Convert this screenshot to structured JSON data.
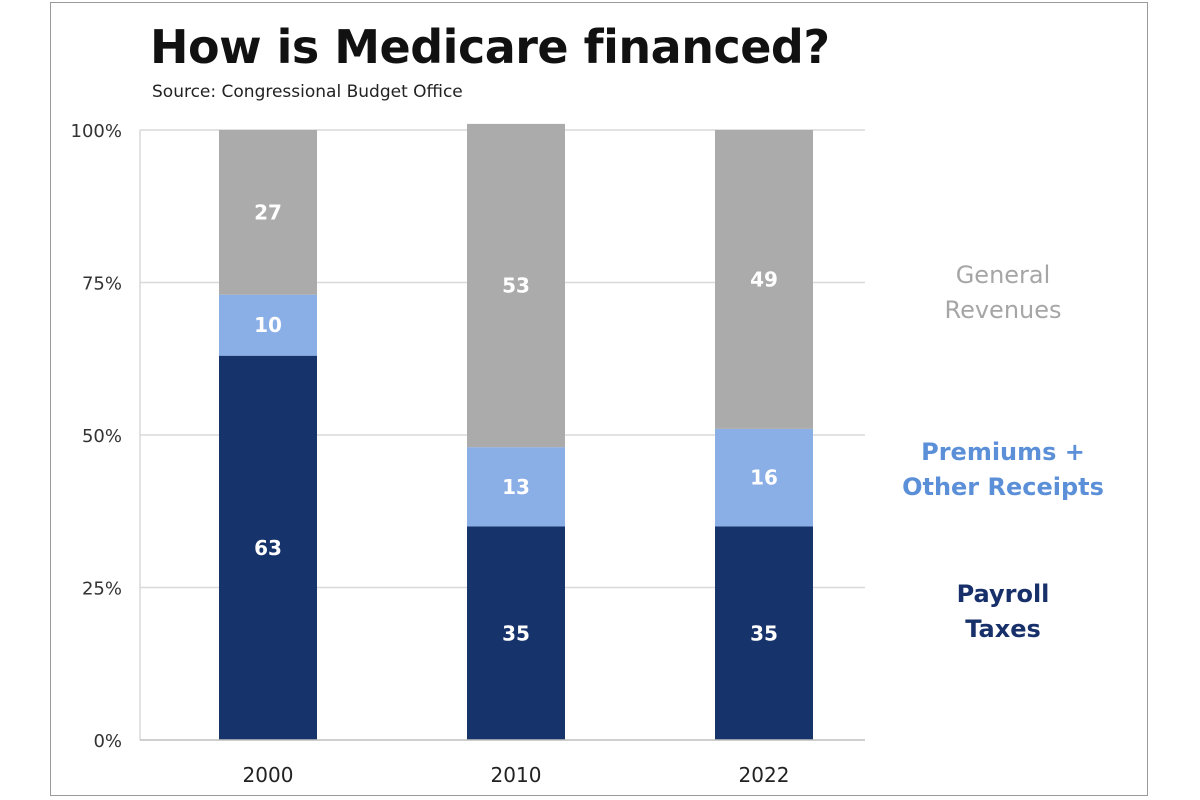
{
  "chart_data": {
    "type": "bar",
    "stacked": true,
    "title": "How is Medicare financed?",
    "subtitle": "Source: Congressional Budget Office",
    "categories": [
      "2000",
      "2010",
      "2022"
    ],
    "series": [
      {
        "name": "Payroll Taxes",
        "color": "#17336b",
        "values": [
          63,
          35,
          35
        ]
      },
      {
        "name": "Premiums + Other Receipts",
        "color": "#8aaee6",
        "values": [
          10,
          13,
          16
        ]
      },
      {
        "name": "General Revenues",
        "color": "#ababab",
        "values": [
          27,
          53,
          49
        ]
      }
    ],
    "ylim": [
      0,
      100
    ],
    "yticks": [
      "0%",
      "25%",
      "50%",
      "75%",
      "100%"
    ],
    "grid": true,
    "legend_placement": "right, aligned with segments"
  },
  "legend": {
    "general_line1": "General",
    "general_line2": "Revenues",
    "premiums_line1": "Premiums +",
    "premiums_line2": "Other Receipts",
    "payroll_line1": "Payroll",
    "payroll_line2": "Taxes"
  }
}
